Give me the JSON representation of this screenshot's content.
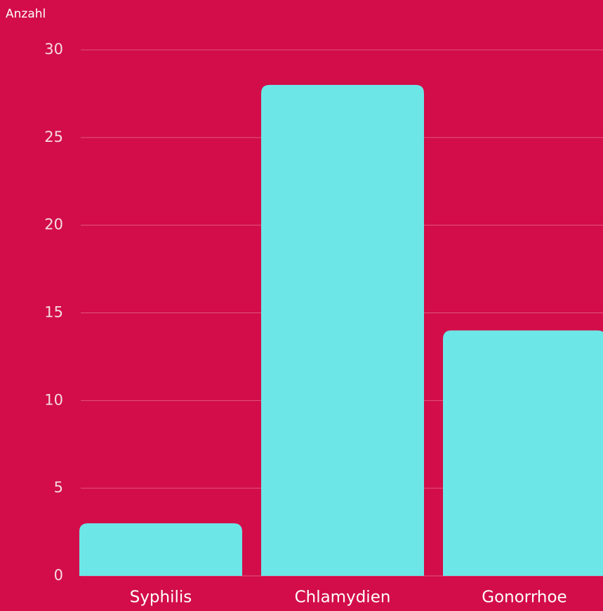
{
  "chart_data": {
    "type": "bar",
    "y_label": "Anzahl",
    "categories": [
      "Syphilis",
      "Chlamydien",
      "Gonorrhoe"
    ],
    "values": [
      3,
      28,
      14
    ],
    "color": "#6de6e8",
    "ylim": [
      0,
      30
    ],
    "yticks": [
      0,
      5,
      10,
      15,
      20,
      25,
      30
    ],
    "grid": true
  }
}
